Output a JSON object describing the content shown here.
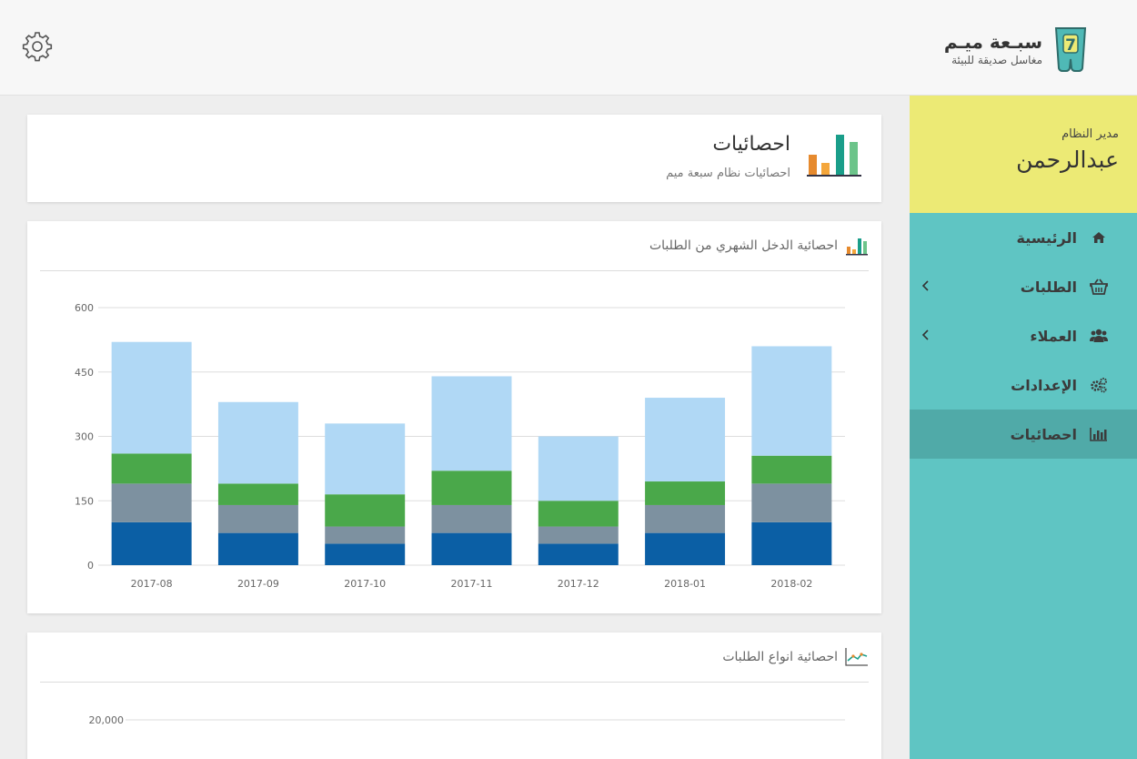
{
  "header": {
    "brand_name": "سبـعة ميـم",
    "brand_tagline": "مغاسل صديقة للبيئة",
    "logo_mark": "7"
  },
  "sidebar": {
    "role": "مدير النظام",
    "user_name": "عبدالرحمن",
    "items": [
      {
        "label": "الرئيسية",
        "icon": "home-icon"
      },
      {
        "label": "الطلبات",
        "icon": "basket-icon"
      },
      {
        "label": "العملاء",
        "icon": "users-icon"
      },
      {
        "label": "الإعدادات",
        "icon": "cogs-icon"
      },
      {
        "label": "احصائيات",
        "icon": "bar-chart-icon"
      }
    ]
  },
  "page": {
    "title": "احصائيات",
    "subtitle": "احصائيات نظام سبعة ميم"
  },
  "panels": {
    "income": {
      "title": "احصائية الدخل الشهري من الطلبات"
    },
    "types": {
      "title": "احصائية انواع الطلبات"
    }
  },
  "colors": {
    "series": [
      "#0b5fa5",
      "#7d91a0",
      "#4aa84a",
      "#b0d8f5"
    ],
    "sidebar": "#5fc5c3",
    "profile": "#ecea75"
  },
  "chart_data": [
    {
      "type": "bar",
      "stacked": true,
      "categories": [
        "2017-08",
        "2017-09",
        "2017-10",
        "2017-11",
        "2017-12",
        "2018-01",
        "2018-02"
      ],
      "series": [
        {
          "values": [
            100,
            75,
            50,
            75,
            50,
            75,
            100
          ]
        },
        {
          "values": [
            90,
            65,
            40,
            65,
            40,
            65,
            90
          ]
        },
        {
          "values": [
            70,
            50,
            75,
            80,
            60,
            55,
            65
          ]
        },
        {
          "values": [
            260,
            190,
            165,
            220,
            150,
            195,
            255
          ]
        }
      ],
      "y_ticks": [
        "0",
        "150",
        "300",
        "450",
        "600"
      ],
      "ylim": [
        0,
        600
      ],
      "grid": true
    },
    {
      "type": "line",
      "y_ticks": [
        "20,000"
      ]
    }
  ]
}
